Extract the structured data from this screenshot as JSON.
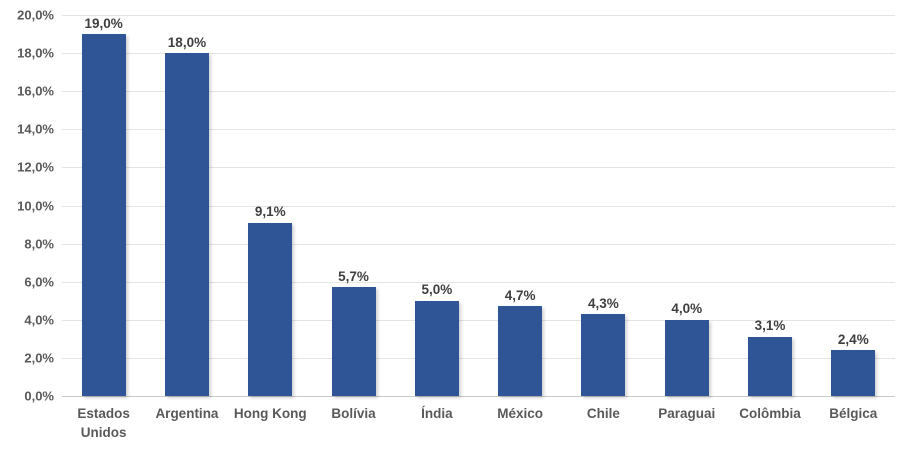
{
  "chart_data": {
    "type": "bar",
    "title": "",
    "xlabel": "",
    "ylabel": "",
    "categories": [
      "Estados Unidos",
      "Argentina",
      "Hong Kong",
      "Bolívia",
      "Índia",
      "México",
      "Chile",
      "Paraguai",
      "Colômbia",
      "Bélgica"
    ],
    "values": [
      19.0,
      18.0,
      9.1,
      5.7,
      5.0,
      4.7,
      4.3,
      4.0,
      3.1,
      2.4
    ],
    "value_labels": [
      "19,0%",
      "18,0%",
      "9,1%",
      "5,7%",
      "5,0%",
      "4,7%",
      "4,3%",
      "4,0%",
      "3,1%",
      "2,4%"
    ],
    "ylim": [
      0,
      20
    ],
    "ytick_step": 2,
    "ytick_labels": [
      "0,0%",
      "2,0%",
      "4,0%",
      "6,0%",
      "8,0%",
      "10,0%",
      "12,0%",
      "14,0%",
      "16,0%",
      "18,0%",
      "20,0%"
    ],
    "grid": true,
    "legend": false,
    "colors": {
      "bar": "#2F5597",
      "grid": "#E4E4E4",
      "axis": "#C8C8C8",
      "tick_label": "#595959",
      "value_label": "#3F3F3F",
      "background": "#FFFFFF"
    }
  }
}
